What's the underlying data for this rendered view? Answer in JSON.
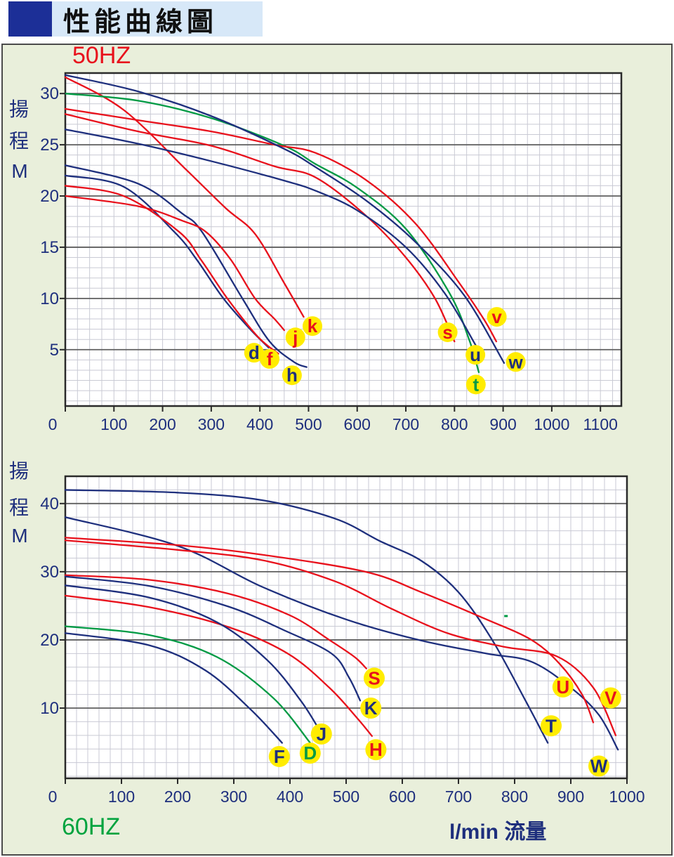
{
  "header": {
    "title": "性能曲線圖"
  },
  "colors": {
    "navy": "#1e2f7d",
    "red": "#e8111c",
    "green": "#009a44",
    "label_yellow": "#ffec00",
    "grid_minor": "#c9cad4",
    "grid_major": "#5f5f5f",
    "frame": "#2a2a2a",
    "page_bg": "#e9efdb",
    "title_bg": "#d7e8f8",
    "title_square": "#1c2f97",
    "plot_bg": "#ffffff",
    "freq50_color": "#e8111c",
    "freq60_color": "#00a33e"
  },
  "chart_data": [
    {
      "id": "50hz",
      "type": "line",
      "freq_label": "50HZ",
      "y_axis_label_chars": [
        "揚",
        "程",
        "M"
      ],
      "x_ticks": [
        0,
        100,
        200,
        300,
        400,
        500,
        600,
        700,
        800,
        900,
        1000,
        1100
      ],
      "y_ticks": [
        5,
        10,
        15,
        20,
        25,
        30
      ],
      "xlim": [
        0,
        1143
      ],
      "ylim": [
        -0.5,
        32
      ],
      "x_minor_step": 25,
      "y_minor_step": 1,
      "grid": true,
      "series": [
        {
          "id": "d",
          "color": "navy",
          "points": [
            [
              0,
              22
            ],
            [
              120,
              20.9
            ],
            [
              224,
              16.5
            ],
            [
              270,
              13.8
            ],
            [
              325,
              10
            ],
            [
              380,
              7
            ],
            [
              418,
              5.2
            ]
          ],
          "tag": {
            "text": "d",
            "color": "navy",
            "x": 388,
            "y": 4.7
          }
        },
        {
          "id": "f",
          "color": "red",
          "points": [
            [
              0,
              21
            ],
            [
              120,
              20
            ],
            [
              234,
              16.5
            ],
            [
              280,
              13.7
            ],
            [
              333,
              10
            ],
            [
              395,
              6.3
            ],
            [
              438,
              4.6
            ]
          ],
          "tag": {
            "text": "f",
            "color": "red",
            "x": 420,
            "y": 4.1
          }
        },
        {
          "id": "h",
          "color": "navy",
          "points": [
            [
              0,
              23
            ],
            [
              150,
              21.2
            ],
            [
              240,
              18.3
            ],
            [
              281,
              16.5
            ],
            [
              364,
              10
            ],
            [
              420,
              5.8
            ],
            [
              470,
              3.8
            ],
            [
              496,
              3.3
            ]
          ],
          "tag": {
            "text": "h",
            "color": "navy",
            "x": 466,
            "y": 2.5
          }
        },
        {
          "id": "j",
          "color": "red",
          "points": [
            [
              0,
              20
            ],
            [
              150,
              19
            ],
            [
              240,
              17.6
            ],
            [
              289,
              16.5
            ],
            [
              340,
              13.8
            ],
            [
              390,
              10
            ],
            [
              430,
              8
            ],
            [
              450,
              6.9
            ]
          ],
          "tag": {
            "text": "j",
            "color": "red",
            "x": 473,
            "y": 6.2
          }
        },
        {
          "id": "k",
          "color": "red",
          "points": [
            [
              0,
              31.6
            ],
            [
              120,
              28.4
            ],
            [
              250,
              22.5
            ],
            [
              330,
              18.8
            ],
            [
              390,
              16.3
            ],
            [
              450,
              11.5
            ],
            [
              490,
              8.2
            ]
          ],
          "tag": {
            "text": "k",
            "color": "red",
            "x": 508,
            "y": 7.3
          }
        },
        {
          "id": "s",
          "color": "red",
          "points": [
            [
              0,
              28
            ],
            [
              150,
              26.3
            ],
            [
              300,
              24.9
            ],
            [
              430,
              22.9
            ],
            [
              515,
              21.8
            ],
            [
              620,
              18
            ],
            [
              700,
              14
            ],
            [
              760,
              10
            ],
            [
              800,
              5.8
            ]
          ],
          "tag": {
            "text": "s",
            "color": "red",
            "x": 786,
            "y": 6.7
          }
        },
        {
          "id": "t",
          "color": "green",
          "points": [
            [
              0,
              30
            ],
            [
              150,
              29.3
            ],
            [
              300,
              27.6
            ],
            [
              450,
              24.9
            ],
            [
              515,
              23.1
            ],
            [
              600,
              20.8
            ],
            [
              700,
              16.8
            ],
            [
              790,
              10.5
            ],
            [
              830,
              6
            ],
            [
              850,
              2.8
            ]
          ],
          "tag": {
            "text": "t",
            "color": "green",
            "x": 844,
            "y": 1.6
          }
        },
        {
          "id": "u",
          "color": "navy",
          "points": [
            [
              0,
              26.5
            ],
            [
              150,
              25.1
            ],
            [
              300,
              23.4
            ],
            [
              450,
              21.5
            ],
            [
              515,
              20.5
            ],
            [
              600,
              18.6
            ],
            [
              700,
              15
            ],
            [
              780,
              10.5
            ],
            [
              844,
              5.4
            ]
          ],
          "tag": {
            "text": "u",
            "color": "navy",
            "x": 843,
            "y": 4.5
          }
        },
        {
          "id": "v",
          "color": "red",
          "points": [
            [
              0,
              28.5
            ],
            [
              150,
              27.4
            ],
            [
              300,
              26.3
            ],
            [
              430,
              25
            ],
            [
              515,
              24.2
            ],
            [
              620,
              21.5
            ],
            [
              720,
              17.3
            ],
            [
              810,
              11.5
            ],
            [
              860,
              8
            ],
            [
              886,
              5.8
            ]
          ],
          "tag": {
            "text": "v",
            "color": "red",
            "x": 887,
            "y": 8.2
          }
        },
        {
          "id": "w",
          "color": "navy",
          "points": [
            [
              0,
              31.8
            ],
            [
              150,
              30.2
            ],
            [
              300,
              27.8
            ],
            [
              450,
              24.6
            ],
            [
              515,
              22.8
            ],
            [
              620,
              19.5
            ],
            [
              720,
              15.5
            ],
            [
              820,
              10.3
            ],
            [
              902,
              3.7
            ]
          ],
          "tag": {
            "text": "w",
            "color": "navy",
            "x": 926,
            "y": 3.8
          }
        }
      ]
    },
    {
      "id": "60hz",
      "type": "line",
      "freq_label": "60HZ",
      "x_axis_label": "l/min 流量",
      "y_axis_label_chars": [
        "揚",
        "程",
        "M"
      ],
      "x_ticks": [
        0,
        100,
        200,
        300,
        400,
        500,
        600,
        700,
        800,
        900,
        1000
      ],
      "y_ticks": [
        10,
        20,
        30,
        40
      ],
      "xlim": [
        0,
        1000
      ],
      "ylim": [
        -0.3,
        44
      ],
      "x_minor_step": 20,
      "y_minor_step": 2,
      "grid": true,
      "speck": {
        "x": 784,
        "y": 23.5,
        "color": "green"
      },
      "series": [
        {
          "id": "T",
          "color": "navy",
          "points": [
            [
              0,
              42
            ],
            [
              200,
              41.6
            ],
            [
              350,
              40.5
            ],
            [
              480,
              37.8
            ],
            [
              560,
              34.5
            ],
            [
              634,
              31.6
            ],
            [
              700,
              27
            ],
            [
              760,
              20
            ],
            [
              820,
              11
            ],
            [
              859,
              4.9
            ]
          ],
          "tag": {
            "text": "T",
            "color": "navy",
            "x": 865,
            "y": 7.4
          }
        },
        {
          "id": "W",
          "color": "navy",
          "points": [
            [
              0,
              38
            ],
            [
              200,
              33.8
            ],
            [
              350,
              27.8
            ],
            [
              500,
              23
            ],
            [
              634,
              19.9
            ],
            [
              750,
              18
            ],
            [
              830,
              16.8
            ],
            [
              900,
              13
            ],
            [
              950,
              9
            ],
            [
              984,
              3.9
            ]
          ],
          "tag": {
            "text": "W",
            "color": "navy",
            "x": 950,
            "y": 1.5
          }
        },
        {
          "id": "U",
          "color": "red",
          "points": [
            [
              0,
              35
            ],
            [
              200,
              33.9
            ],
            [
              350,
              32.5
            ],
            [
              534,
              30
            ],
            [
              634,
              27
            ],
            [
              750,
              23
            ],
            [
              830,
              20
            ],
            [
              880,
              16.5
            ],
            [
              920,
              12
            ],
            [
              940,
              7.9
            ]
          ],
          "tag": {
            "text": "U",
            "color": "red",
            "x": 886,
            "y": 13.1
          }
        },
        {
          "id": "V",
          "color": "red",
          "points": [
            [
              0,
              34.6
            ],
            [
              200,
              33.2
            ],
            [
              350,
              31.7
            ],
            [
              480,
              28.6
            ],
            [
              580,
              24.6
            ],
            [
              680,
              21
            ],
            [
              780,
              19
            ],
            [
              875,
              17.6
            ],
            [
              940,
              13
            ],
            [
              980,
              6
            ]
          ],
          "tag": {
            "text": "V",
            "color": "red",
            "x": 971,
            "y": 11.5
          }
        },
        {
          "id": "S",
          "color": "red",
          "points": [
            [
              0,
              29.5
            ],
            [
              150,
              28.8
            ],
            [
              290,
              26.8
            ],
            [
              400,
              23.6
            ],
            [
              470,
              20
            ],
            [
              515,
              17.5
            ],
            [
              536,
              15.8
            ]
          ],
          "tag": {
            "text": "S",
            "color": "red",
            "x": 550,
            "y": 14.4
          }
        },
        {
          "id": "H",
          "color": "red",
          "points": [
            [
              0,
              26.5
            ],
            [
              150,
              24.8
            ],
            [
              290,
              21.9
            ],
            [
              396,
              18
            ],
            [
              470,
              13
            ],
            [
              520,
              8.5
            ],
            [
              546,
              5.9
            ]
          ],
          "tag": {
            "text": "H",
            "color": "red",
            "x": 553,
            "y": 3.9
          }
        },
        {
          "id": "K",
          "color": "navy",
          "points": [
            [
              0,
              29.3
            ],
            [
              150,
              27.9
            ],
            [
              290,
              24.9
            ],
            [
              390,
              21.4
            ],
            [
              474,
              18
            ],
            [
              505,
              14.5
            ],
            [
              525,
              11.1
            ]
          ],
          "tag": {
            "text": "K",
            "color": "navy",
            "x": 544,
            "y": 10.0
          }
        },
        {
          "id": "J",
          "color": "navy",
          "points": [
            [
              0,
              28
            ],
            [
              150,
              26.2
            ],
            [
              270,
              22.6
            ],
            [
              360,
              17
            ],
            [
              420,
              11
            ],
            [
              453,
              6.7
            ]
          ],
          "tag": {
            "text": "J",
            "color": "navy",
            "x": 456,
            "y": 6.2
          }
        },
        {
          "id": "D",
          "color": "green",
          "points": [
            [
              0,
              22
            ],
            [
              150,
              20.7
            ],
            [
              270,
              17.5
            ],
            [
              370,
              11.5
            ],
            [
              436,
              4.9
            ]
          ],
          "tag": {
            "text": "D",
            "color": "green",
            "x": 436,
            "y": 3.4
          }
        },
        {
          "id": "F",
          "color": "navy",
          "points": [
            [
              0,
              21
            ],
            [
              150,
              19.2
            ],
            [
              250,
              15.5
            ],
            [
              330,
              9.8
            ],
            [
              386,
              4.9
            ]
          ],
          "tag": {
            "text": "F",
            "color": "navy",
            "x": 381,
            "y": 2.9
          }
        }
      ]
    }
  ]
}
